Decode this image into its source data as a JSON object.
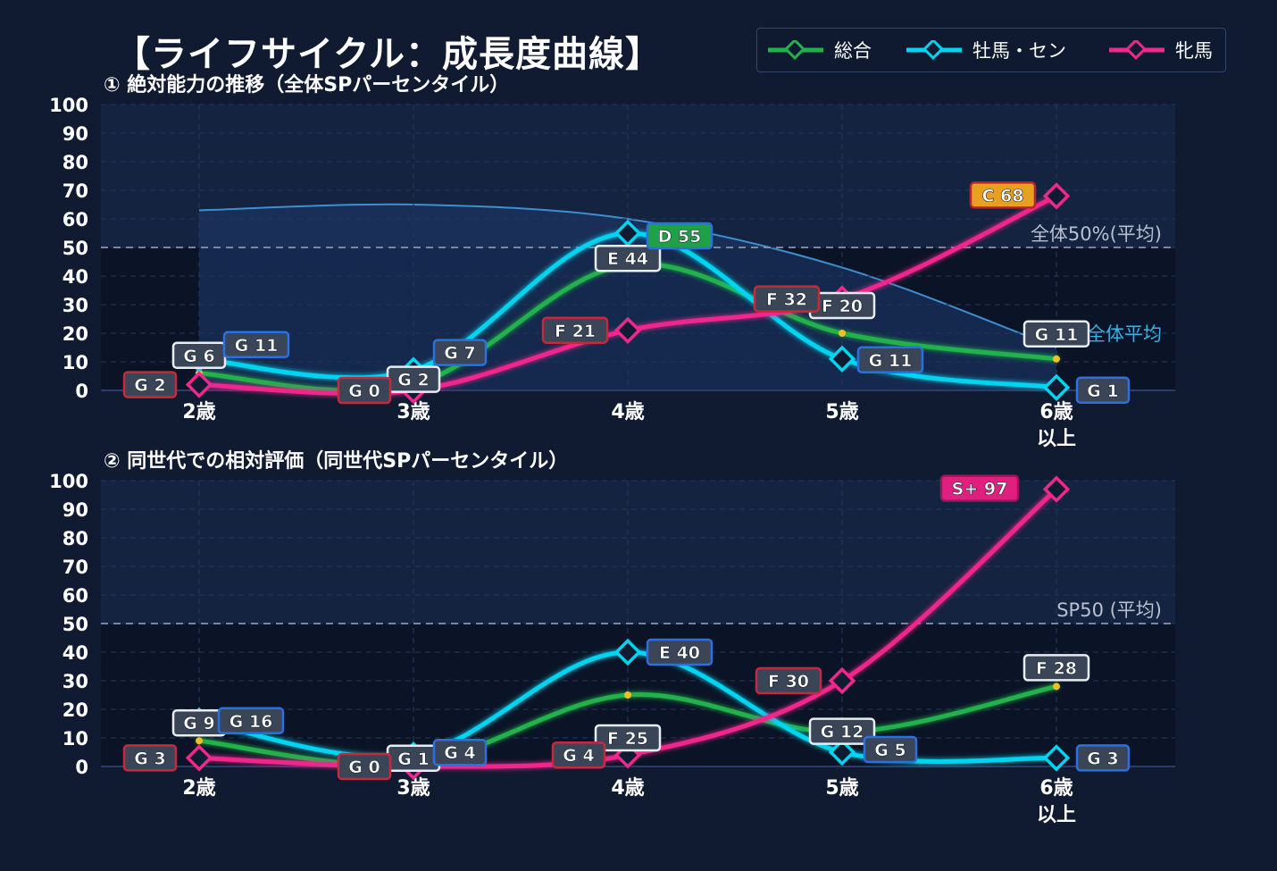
{
  "title": "【ライフサイクル：成長度曲線】",
  "legend": [
    {
      "label": "総合",
      "color": "#22b24c"
    },
    {
      "label": "牡馬・セン",
      "color": "#00d4f0"
    },
    {
      "label": "牝馬",
      "color": "#f0288c"
    }
  ],
  "chart_data": [
    {
      "type": "line",
      "subtitle": "① 絶対能力の推移（全体SPパーセンタイル）",
      "categories": [
        "2歳",
        "3歳",
        "4歳",
        "5歳",
        "6歳\n以上"
      ],
      "ylim": [
        0,
        100
      ],
      "yticks": [
        0,
        10,
        20,
        30,
        40,
        50,
        60,
        70,
        80,
        90,
        100
      ],
      "reference_line": {
        "value": 50,
        "label": "全体50%(平均)"
      },
      "average_curve": {
        "label": "全体平均",
        "values": [
          63,
          65,
          60,
          43,
          15
        ]
      },
      "series": [
        {
          "name": "総合",
          "values": [
            6,
            2,
            44,
            20,
            11
          ],
          "labels": [
            "G 6",
            "G 2",
            "E 44",
            "F 20",
            "G 11"
          ]
        },
        {
          "name": "牡馬・セン",
          "values": [
            11,
            7,
            55,
            11,
            1
          ],
          "labels": [
            "G 11",
            "G 7",
            "D 55",
            "G 11",
            "G 1"
          ]
        },
        {
          "name": "牝馬",
          "values": [
            2,
            0,
            21,
            32,
            68
          ],
          "labels": [
            "G 2",
            "G 0",
            "F 21",
            "F 32",
            "C 68"
          ]
        }
      ]
    },
    {
      "type": "line",
      "subtitle": "② 同世代での相対評価（同世代SPパーセンタイル）",
      "categories": [
        "2歳",
        "3歳",
        "4歳",
        "5歳",
        "6歳\n以上"
      ],
      "ylim": [
        0,
        100
      ],
      "yticks": [
        0,
        10,
        20,
        30,
        40,
        50,
        60,
        70,
        80,
        90,
        100
      ],
      "reference_line": {
        "value": 50,
        "label": "SP50 (平均)"
      },
      "series": [
        {
          "name": "総合",
          "values": [
            9,
            1,
            25,
            12,
            28
          ],
          "labels": [
            "G 9",
            "G 1",
            "F 25",
            "G 12",
            "F 28"
          ]
        },
        {
          "name": "牡馬・セン",
          "values": [
            16,
            4,
            40,
            5,
            3
          ],
          "labels": [
            "G 16",
            "G 4",
            "E 40",
            "G 5",
            "G 3"
          ]
        },
        {
          "name": "牝馬",
          "values": [
            3,
            0,
            4,
            30,
            97
          ],
          "labels": [
            "G 3",
            "G 0",
            "G 4",
            "F 30",
            "S+ 97"
          ]
        }
      ]
    }
  ]
}
